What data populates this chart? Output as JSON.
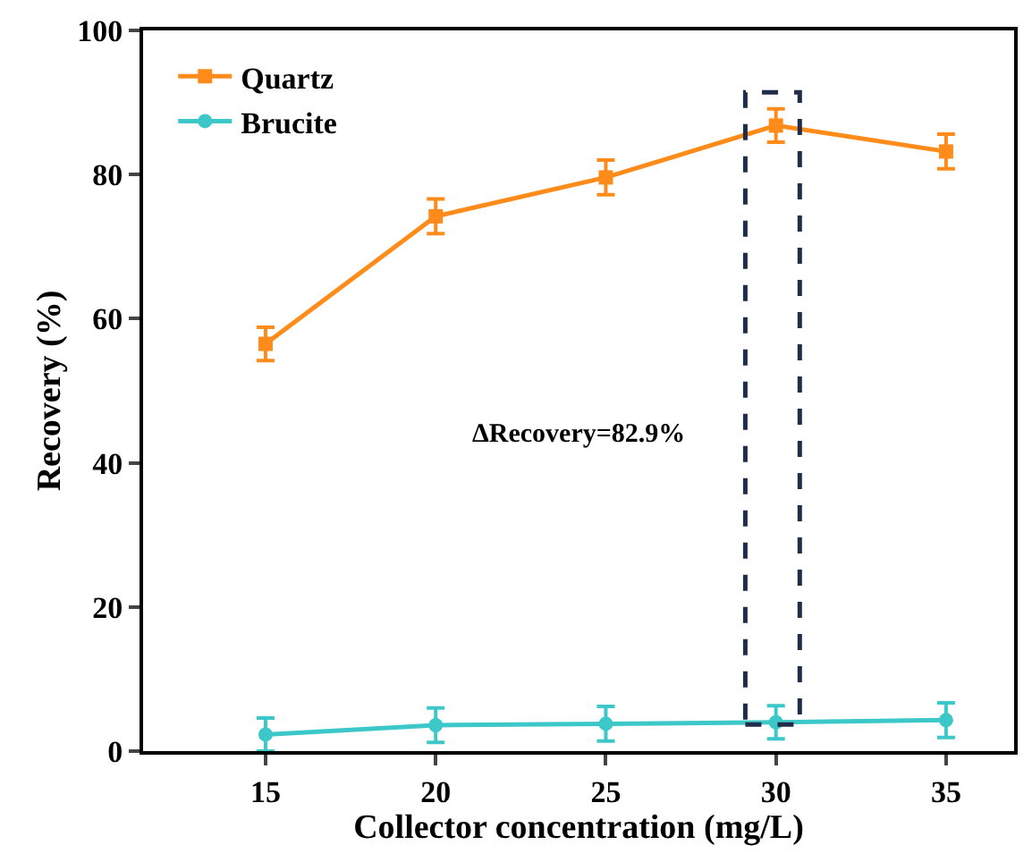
{
  "chart_data": {
    "type": "line",
    "xlabel": "Collector concentration (mg/L)",
    "ylabel": "Recovery (%)",
    "x": [
      15,
      20,
      25,
      30,
      35
    ],
    "series": [
      {
        "name": "Quartz",
        "color": "#ff8c1a",
        "values": [
          56.5,
          74.2,
          79.6,
          86.8,
          83.2
        ],
        "errors": [
          2.3,
          2.4,
          2.4,
          2.3,
          2.4
        ],
        "marker": "square"
      },
      {
        "name": "Brucite",
        "color": "#3cc8c8",
        "values": [
          2.3,
          3.6,
          3.8,
          4.0,
          4.3
        ],
        "errors": [
          2.3,
          2.4,
          2.4,
          2.3,
          2.4
        ],
        "marker": "circle"
      }
    ],
    "xlim": [
      11.4,
      37
    ],
    "xticks": [
      15,
      20,
      25,
      30,
      35
    ],
    "ylim": [
      0,
      100
    ],
    "yticks": [
      0,
      20,
      40,
      60,
      80,
      100
    ],
    "annotations": [
      "ΔRecovery=82.9%"
    ],
    "legend": "top left",
    "line_style": "solid"
  }
}
